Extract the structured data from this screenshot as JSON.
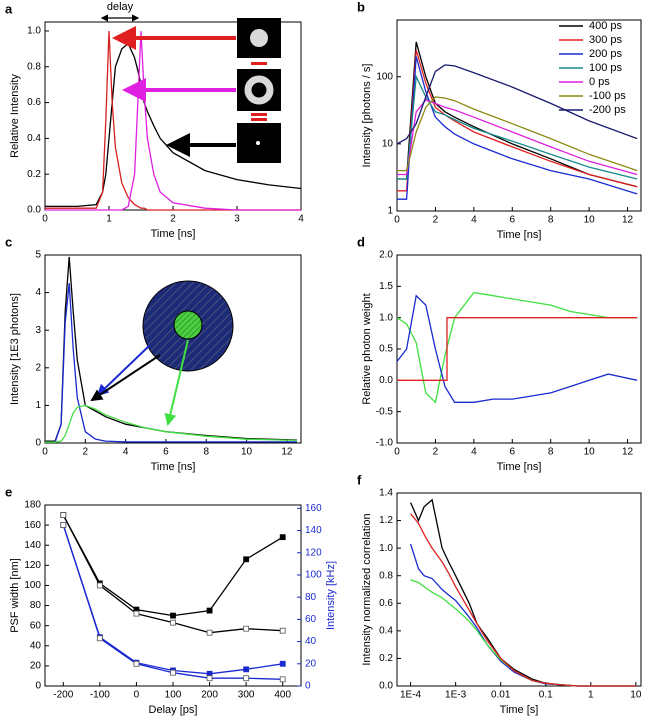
{
  "chart_data": [
    {
      "type": "line",
      "panel_label": "a",
      "xlabel": "Time [ns]",
      "ylabel": "Relative Intensity",
      "annotation": "delay",
      "xlim": [
        0,
        4
      ],
      "xticks": [
        0,
        1,
        2,
        3,
        4
      ],
      "ylim": [
        0,
        1.05
      ],
      "yticks": [
        {
          "value": 0,
          "label": "0.0"
        },
        0.2,
        0.4,
        0.6,
        0.8,
        {
          "value": 1,
          "label": "1.0"
        }
      ],
      "x": [
        0,
        0.5,
        0.8,
        0.9,
        0.95,
        1.0,
        1.05,
        1.1,
        1.2,
        1.3,
        1.4,
        1.45,
        1.5,
        1.55,
        1.6,
        1.7,
        1.8,
        2.0,
        2.5,
        3.0,
        3.5,
        4.0
      ],
      "series": [
        {
          "color": "#000000",
          "values": [
            0.02,
            0.02,
            0.03,
            0.1,
            0.2,
            0.4,
            0.6,
            0.8,
            0.9,
            0.93,
            0.85,
            0.78,
            0.7,
            0.6,
            0.55,
            0.47,
            0.4,
            0.32,
            0.22,
            0.17,
            0.14,
            0.12
          ]
        },
        {
          "color": "#d62020",
          "values": [
            0.01,
            0.01,
            0.01,
            0.1,
            0.5,
            1.0,
            0.6,
            0.35,
            0.15,
            0.07,
            0.03,
            0.02,
            0.01,
            0.01,
            0,
            0,
            0,
            0,
            0,
            0,
            0,
            0
          ]
        },
        {
          "color": "#e020e0",
          "values": [
            0,
            0,
            0,
            0,
            0,
            0,
            0,
            0,
            0,
            0.02,
            0.2,
            0.6,
            1.0,
            0.65,
            0.4,
            0.2,
            0.1,
            0.04,
            0.01,
            0,
            0,
            0
          ]
        }
      ]
    },
    {
      "type": "line",
      "panel_label": "b",
      "xlabel": "Time [ns]",
      "ylabel": "Intensity [photons / s]",
      "ylog": true,
      "legend": "top-right",
      "xlim": [
        0,
        12.7
      ],
      "xticks": [
        0,
        2,
        4,
        6,
        8,
        10,
        12
      ],
      "ylim": [
        1,
        700
      ],
      "yticks": [
        1,
        10,
        100
      ],
      "x": [
        0,
        0.5,
        1,
        1.5,
        2,
        2.5,
        3,
        4,
        6,
        8,
        10,
        12.5
      ],
      "series": [
        {
          "name": "400 ps",
          "color": "#000000",
          "values": [
            3,
            3,
            330,
            100,
            40,
            30,
            25,
            18,
            10,
            6,
            3.5,
            2.3
          ]
        },
        {
          "name": "300 ps",
          "color": "#e02020",
          "values": [
            2,
            2,
            250,
            80,
            35,
            27,
            22,
            15,
            9,
            5.5,
            3.5,
            2.3
          ]
        },
        {
          "name": "200 ps",
          "color": "#1a2ad0",
          "values": [
            1.5,
            1.5,
            200,
            60,
            25,
            18,
            14,
            10,
            6,
            4,
            3,
            1.8
          ]
        },
        {
          "name": "100 ps",
          "color": "#1a8a8a",
          "values": [
            3,
            3,
            100,
            50,
            30,
            27,
            23,
            17,
            11,
            7,
            4.5,
            3
          ]
        },
        {
          "name": "0 ps",
          "color": "#e020e0",
          "values": [
            3.5,
            3.5,
            30,
            45,
            40,
            35,
            32,
            25,
            15,
            9,
            5.5,
            3.5
          ]
        },
        {
          "name": "-100 ps",
          "color": "#8a8a10",
          "values": [
            4,
            4,
            15,
            35,
            50,
            48,
            44,
            33,
            20,
            12,
            7,
            4
          ]
        },
        {
          "name": "-200 ps",
          "color": "#1a1a70",
          "values": [
            10,
            12,
            20,
            50,
            120,
            150,
            145,
            115,
            70,
            40,
            22,
            12
          ]
        }
      ]
    },
    {
      "type": "line",
      "panel_label": "c",
      "xlabel": "Time [ns]",
      "ylabel": "Intensity [1E3 photons]",
      "xlim": [
        0,
        12.7
      ],
      "xticks": [
        0,
        2,
        4,
        6,
        8,
        10,
        12
      ],
      "ylim": [
        0,
        5
      ],
      "yticks": [
        0,
        1,
        2,
        3,
        4,
        5
      ],
      "x": [
        0,
        0.5,
        0.8,
        1,
        1.2,
        1.4,
        1.6,
        2,
        2.5,
        3,
        4,
        5,
        6,
        8,
        10,
        12.5
      ],
      "series": [
        {
          "color": "#000000",
          "values": [
            0.05,
            0.05,
            0.5,
            3.5,
            4.95,
            3.5,
            2.2,
            1.0,
            0.85,
            0.7,
            0.5,
            0.4,
            0.3,
            0.2,
            0.12,
            0.08
          ]
        },
        {
          "color": "#1a2ad0",
          "values": [
            0.02,
            0.02,
            0.5,
            3.2,
            4.25,
            2.5,
            1.2,
            0.3,
            0.1,
            0.05,
            0.03,
            0.03,
            0.03,
            0.03,
            0.03,
            0.03
          ]
        },
        {
          "color": "#40e040",
          "values": [
            0.02,
            0.02,
            0.05,
            0.2,
            0.5,
            0.8,
            0.95,
            1.0,
            0.9,
            0.75,
            0.55,
            0.4,
            0.3,
            0.18,
            0.1,
            0.07
          ]
        }
      ]
    },
    {
      "type": "line",
      "panel_label": "d",
      "xlabel": "Time [ns]",
      "ylabel": "Relative photon weight",
      "xlim": [
        0,
        12.7
      ],
      "xticks": [
        0,
        2,
        4,
        6,
        8,
        10,
        12
      ],
      "ylim": [
        -1,
        2
      ],
      "yticks": [
        {
          "value": -1,
          "label": "-1.0"
        },
        -0.5,
        {
          "value": 0,
          "label": "0.0"
        },
        0.5,
        {
          "value": 1,
          "label": "1.0"
        },
        1.5,
        {
          "value": 2,
          "label": "2.0"
        }
      ],
      "x": [
        0,
        0.5,
        1,
        1.5,
        2,
        2.5,
        3,
        4,
        5,
        6,
        7,
        8,
        9,
        10,
        11,
        12.5
      ],
      "series": [
        {
          "color": "#40e040",
          "values": [
            1.0,
            0.9,
            0.6,
            -0.2,
            -0.35,
            0.4,
            1.0,
            1.4,
            1.35,
            1.3,
            1.25,
            1.2,
            1.1,
            1.05,
            1.0,
            1.0
          ]
        },
        {
          "color": "#1a2ad0",
          "values": [
            0.3,
            0.5,
            1.35,
            1.2,
            0.5,
            -0.1,
            -0.35,
            -0.35,
            -0.3,
            -0.3,
            -0.25,
            -0.2,
            -0.1,
            0.0,
            0.1,
            0.0
          ]
        },
        {
          "color": "#e02020",
          "x": [
            0,
            2.6,
            2.6,
            12.5
          ],
          "values": [
            0,
            0,
            1,
            1
          ]
        }
      ]
    },
    {
      "type": "line",
      "panel_label": "e",
      "xlabel": "Delay [ps]",
      "ylabel": "PSF width [nm]",
      "y2label": "Intensity [kHz]",
      "xlim": [
        -250,
        450
      ],
      "xticks": [
        -200,
        -100,
        0,
        100,
        200,
        300,
        400
      ],
      "ylim": [
        0,
        180
      ],
      "yticks": [
        0,
        20,
        40,
        60,
        80,
        100,
        120,
        140,
        160,
        180
      ],
      "y2lim": [
        0,
        163
      ],
      "y2ticks": [
        0,
        20,
        40,
        60,
        80,
        100,
        120,
        140,
        160
      ],
      "x": [
        -200,
        -100,
        0,
        100,
        200,
        300,
        400
      ],
      "series": [
        {
          "color": "#000000",
          "marker": "square",
          "filled": true,
          "values": [
            170,
            102,
            76,
            70,
            75,
            126,
            148
          ]
        },
        {
          "color": "#000000",
          "marker": "square",
          "filled": false,
          "values": [
            170,
            100,
            72,
            63,
            53,
            57,
            55
          ]
        },
        {
          "color": "#1a2ad0",
          "marker": "square",
          "filled": true,
          "axis": "y2",
          "values": [
            145,
            44,
            21,
            14,
            11,
            15,
            20
          ]
        },
        {
          "color": "#1a2ad0",
          "marker": "square",
          "filled": false,
          "axis": "y2",
          "values": [
            145,
            43,
            20,
            12,
            7,
            7,
            6
          ]
        }
      ]
    },
    {
      "type": "line",
      "panel_label": "f",
      "xlabel": "Time [s]",
      "ylabel": "Intensity normalized correlation",
      "xlog": true,
      "xlim": [
        5e-05,
        13
      ],
      "xticks": [
        {
          "value": 0.0001,
          "label": "1E-4"
        },
        {
          "value": 0.001,
          "label": "1E-3"
        },
        0.01,
        0.1,
        1,
        10
      ],
      "ylim": [
        0,
        1.4
      ],
      "yticks": [
        {
          "value": 0,
          "label": "0.0"
        },
        0.2,
        0.4,
        0.6,
        0.8,
        {
          "value": 1,
          "label": "1.0"
        },
        1.2,
        1.4
      ],
      "x": [
        0.0001,
        0.00015,
        0.0002,
        0.0003,
        0.0005,
        0.0007,
        0.001,
        0.002,
        0.003,
        0.005,
        0.01,
        0.02,
        0.05,
        0.1,
        0.2,
        0.5,
        1,
        10
      ],
      "series": [
        {
          "color": "#000000",
          "values": [
            1.33,
            1.2,
            1.3,
            1.35,
            1.0,
            0.9,
            0.8,
            0.6,
            0.45,
            0.35,
            0.2,
            0.12,
            0.05,
            0.02,
            0.01,
            0,
            0,
            0
          ]
        },
        {
          "color": "#1a2ad0",
          "values": [
            1.03,
            0.85,
            0.8,
            0.78,
            0.7,
            0.66,
            0.62,
            0.5,
            0.42,
            0.3,
            0.18,
            0.1,
            0.04,
            0.015,
            0.01,
            0,
            0,
            0
          ]
        },
        {
          "color": "#40e040",
          "values": [
            0.77,
            0.75,
            0.72,
            0.68,
            0.64,
            0.6,
            0.56,
            0.47,
            0.4,
            0.3,
            0.19,
            0.11,
            0.04,
            0.02,
            0.01,
            0,
            0,
            0
          ]
        },
        {
          "color": "#e02020",
          "values": [
            1.25,
            1.18,
            1.1,
            1.0,
            0.9,
            0.82,
            0.72,
            0.55,
            0.45,
            0.33,
            0.2,
            0.11,
            0.04,
            0.02,
            0.01,
            0,
            0,
            0
          ]
        }
      ]
    }
  ]
}
